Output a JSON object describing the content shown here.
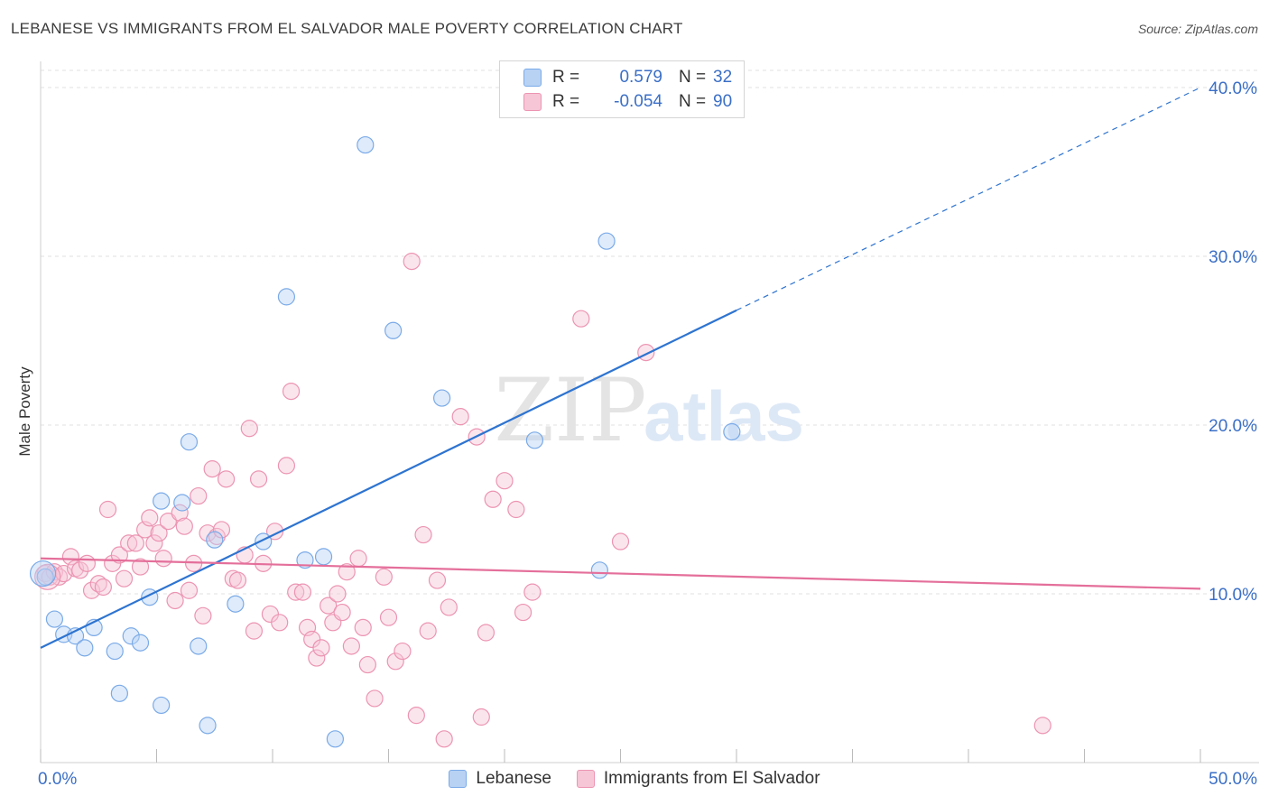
{
  "title": "LEBANESE VS IMMIGRANTS FROM EL SALVADOR MALE POVERTY CORRELATION CHART",
  "source": "Source: ZipAtlas.com",
  "watermark": {
    "zip": "ZIP",
    "atlas": "atlas"
  },
  "colors": {
    "blue": "#7aaae8",
    "blue_fill": "#b8d2f4",
    "blue_line": "#2e74d0",
    "pink": "#ec94b2",
    "pink_fill": "#f6c6d6",
    "pink_line": "#e46f9a",
    "axis_text": "#3b6fc6",
    "grid": "#e2e2e2"
  },
  "legend": {
    "rows": [
      {
        "series": "lebanese",
        "r_label": "R =",
        "r_value": "0.579",
        "n_label": "N =",
        "n_value": "32"
      },
      {
        "series": "el_salvador",
        "r_label": "R =",
        "r_value": "-0.054",
        "n_label": "N =",
        "n_value": "90"
      }
    ]
  },
  "chart_data": {
    "type": "scatter",
    "title": "LEBANESE VS IMMIGRANTS FROM EL SALVADOR MALE POVERTY CORRELATION CHART",
    "xlabel": "",
    "ylabel": "Male Poverty",
    "xlim": [
      0,
      50
    ],
    "ylim": [
      0,
      40
    ],
    "x_tick_labels": [
      "0.0%",
      "50.0%"
    ],
    "y_ticks": [
      10,
      20,
      30,
      40
    ],
    "y_tick_labels": [
      "10.0%",
      "20.0%",
      "30.0%",
      "40.0%"
    ],
    "grid": "horizontal dashed",
    "legend_placement": "top-center and bottom",
    "series": [
      {
        "name": "Lebanese",
        "color": "#7aaae8",
        "r": 0.579,
        "n": 32,
        "trend": {
          "x0": 0,
          "y0": 6.8,
          "x1": 30,
          "y1": 26.8,
          "dashed_to": [
            50,
            40
          ]
        },
        "points": [
          [
            0.2,
            11.0
          ],
          [
            0.6,
            8.5
          ],
          [
            1.0,
            7.6
          ],
          [
            1.5,
            7.5
          ],
          [
            1.9,
            6.8
          ],
          [
            2.3,
            8.0
          ],
          [
            3.2,
            6.6
          ],
          [
            3.4,
            4.1
          ],
          [
            3.9,
            7.5
          ],
          [
            4.3,
            7.1
          ],
          [
            4.7,
            9.8
          ],
          [
            5.2,
            3.4
          ],
          [
            5.2,
            15.5
          ],
          [
            6.1,
            15.4
          ],
          [
            6.4,
            19.0
          ],
          [
            6.8,
            6.9
          ],
          [
            7.2,
            2.2
          ],
          [
            7.5,
            13.2
          ],
          [
            8.4,
            9.4
          ],
          [
            9.6,
            13.1
          ],
          [
            10.6,
            27.6
          ],
          [
            11.4,
            12.0
          ],
          [
            12.2,
            12.2
          ],
          [
            12.7,
            1.4
          ],
          [
            14.0,
            36.6
          ],
          [
            15.2,
            25.6
          ],
          [
            17.3,
            21.6
          ],
          [
            21.3,
            19.1
          ],
          [
            24.1,
            11.4
          ],
          [
            24.4,
            30.9
          ],
          [
            29.8,
            19.6
          ],
          [
            0.1,
            11.2
          ]
        ]
      },
      {
        "name": "Immigrants from El Salvador",
        "color": "#ec94b2",
        "r": -0.054,
        "n": 90,
        "trend": {
          "x0": 0,
          "y0": 12.1,
          "x1": 50,
          "y1": 10.3
        },
        "points": [
          [
            0.2,
            11.2
          ],
          [
            0.4,
            11.0
          ],
          [
            0.6,
            11.3
          ],
          [
            0.8,
            11.0
          ],
          [
            1.0,
            11.2
          ],
          [
            1.3,
            12.2
          ],
          [
            1.5,
            11.5
          ],
          [
            1.7,
            11.4
          ],
          [
            2.0,
            11.8
          ],
          [
            2.2,
            10.2
          ],
          [
            2.5,
            10.6
          ],
          [
            2.7,
            10.4
          ],
          [
            2.9,
            15.0
          ],
          [
            3.1,
            11.8
          ],
          [
            3.4,
            12.3
          ],
          [
            3.6,
            10.9
          ],
          [
            3.8,
            13.0
          ],
          [
            4.1,
            13.0
          ],
          [
            4.3,
            11.6
          ],
          [
            4.5,
            13.8
          ],
          [
            4.7,
            14.5
          ],
          [
            4.9,
            13.0
          ],
          [
            5.1,
            13.6
          ],
          [
            5.3,
            12.1
          ],
          [
            5.5,
            14.3
          ],
          [
            5.8,
            9.6
          ],
          [
            6.0,
            14.8
          ],
          [
            6.2,
            14.0
          ],
          [
            6.4,
            10.2
          ],
          [
            6.6,
            11.8
          ],
          [
            6.8,
            15.8
          ],
          [
            7.0,
            8.7
          ],
          [
            7.2,
            13.6
          ],
          [
            7.4,
            17.4
          ],
          [
            7.6,
            13.4
          ],
          [
            7.8,
            13.8
          ],
          [
            8.0,
            16.8
          ],
          [
            8.3,
            10.9
          ],
          [
            8.5,
            10.8
          ],
          [
            8.8,
            12.3
          ],
          [
            9.0,
            19.8
          ],
          [
            9.2,
            7.8
          ],
          [
            9.4,
            16.8
          ],
          [
            9.6,
            11.8
          ],
          [
            9.9,
            8.8
          ],
          [
            10.1,
            13.7
          ],
          [
            10.3,
            8.3
          ],
          [
            10.6,
            17.6
          ],
          [
            10.8,
            22.0
          ],
          [
            11.0,
            10.1
          ],
          [
            11.3,
            10.1
          ],
          [
            11.5,
            8.0
          ],
          [
            11.7,
            7.3
          ],
          [
            11.9,
            6.2
          ],
          [
            12.1,
            6.8
          ],
          [
            12.4,
            9.3
          ],
          [
            12.6,
            8.3
          ],
          [
            12.8,
            10.0
          ],
          [
            13.0,
            8.9
          ],
          [
            13.2,
            11.3
          ],
          [
            13.4,
            6.9
          ],
          [
            13.7,
            12.1
          ],
          [
            13.9,
            8.0
          ],
          [
            14.1,
            5.8
          ],
          [
            14.4,
            3.8
          ],
          [
            14.8,
            11.0
          ],
          [
            15.0,
            8.6
          ],
          [
            15.3,
            6.0
          ],
          [
            15.6,
            6.6
          ],
          [
            16.0,
            29.7
          ],
          [
            16.2,
            2.8
          ],
          [
            16.5,
            13.5
          ],
          [
            16.7,
            7.8
          ],
          [
            17.1,
            10.8
          ],
          [
            17.4,
            1.4
          ],
          [
            17.6,
            9.2
          ],
          [
            18.1,
            20.5
          ],
          [
            18.8,
            19.3
          ],
          [
            19.0,
            2.7
          ],
          [
            19.2,
            7.7
          ],
          [
            19.5,
            15.6
          ],
          [
            20.0,
            16.7
          ],
          [
            20.5,
            15.0
          ],
          [
            20.8,
            8.9
          ],
          [
            21.2,
            10.1
          ],
          [
            23.3,
            26.3
          ],
          [
            25.0,
            13.1
          ],
          [
            26.1,
            24.3
          ],
          [
            43.2,
            2.2
          ],
          [
            0.3,
            11.0
          ]
        ]
      }
    ]
  },
  "bottom_legend": {
    "lebanese": "Lebanese",
    "el_salvador": "Immigrants from El Salvador"
  }
}
